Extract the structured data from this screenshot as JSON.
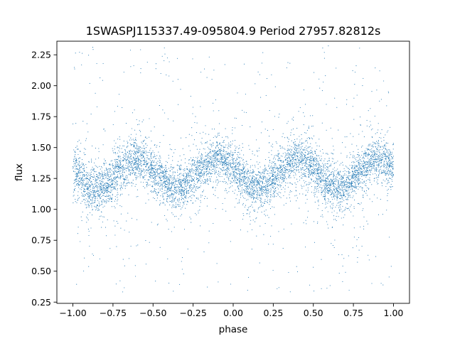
{
  "chart_data": {
    "type": "scatter",
    "title": "1SWASPJ115337.49-095804.9 Period 27957.82812s",
    "xlabel": "phase",
    "ylabel": "flux",
    "xlim": [
      -1.1,
      1.1
    ],
    "ylim": [
      0.24,
      2.36
    ],
    "xticks": [
      -1.0,
      -0.75,
      -0.5,
      -0.25,
      0.0,
      0.25,
      0.5,
      0.75,
      1.0
    ],
    "xtick_labels": [
      "−1.00",
      "−0.75",
      "−0.50",
      "−0.25",
      "0.00",
      "0.25",
      "0.50",
      "0.75",
      "1.00"
    ],
    "yticks": [
      0.25,
      0.5,
      0.75,
      1.0,
      1.25,
      1.5,
      1.75,
      2.0,
      2.25
    ],
    "ytick_labels": [
      "0.25",
      "0.50",
      "0.75",
      "1.00",
      "1.25",
      "1.50",
      "1.75",
      "2.00",
      "2.25"
    ],
    "grid": false,
    "legend": "none",
    "point_color": "#1f77b4",
    "series": [
      {
        "x_range": [
          -1.0,
          1.0
        ],
        "mean_flux": 1.29,
        "amplitude": 0.12,
        "maxima_phase": [
          -0.6,
          -0.1,
          0.4,
          0.9
        ],
        "minima_phase": [
          -0.85,
          -0.35,
          0.15,
          0.65
        ],
        "core_scatter": 0.085,
        "outlier_range": [
          0.33,
          2.33
        ]
      }
    ]
  }
}
